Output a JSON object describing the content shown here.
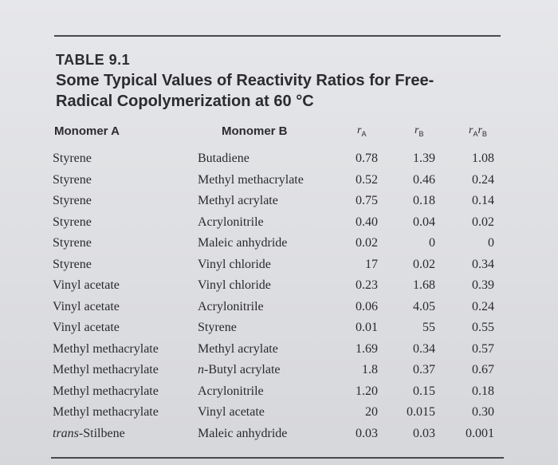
{
  "table": {
    "label": "TABLE 9.1",
    "title_line1": "Some Typical Values of Reactivity Ratios for Free-",
    "title_line2": "Radical Copolymerization at 60 °C",
    "headers": {
      "monomer_a": "Monomer A",
      "monomer_b": "Monomer B",
      "ra_symbol": "r",
      "ra_sub": "A",
      "rb_symbol": "r",
      "rb_sub": "B",
      "rab_symbol_1": "r",
      "rab_sub_1": "A",
      "rab_symbol_2": "r",
      "rab_sub_2": "B"
    },
    "rows": [
      {
        "a_prefix": "",
        "a": "Styrene",
        "b_prefix": "",
        "b": "Butadiene",
        "ra": "0.78",
        "rb": "1.39",
        "rab": "1.08"
      },
      {
        "a_prefix": "",
        "a": "Styrene",
        "b_prefix": "",
        "b": "Methyl methacrylate",
        "ra": "0.52",
        "rb": "0.46",
        "rab": "0.24"
      },
      {
        "a_prefix": "",
        "a": "Styrene",
        "b_prefix": "",
        "b": "Methyl acrylate",
        "ra": "0.75",
        "rb": "0.18",
        "rab": "0.14"
      },
      {
        "a_prefix": "",
        "a": "Styrene",
        "b_prefix": "",
        "b": "Acrylonitrile",
        "ra": "0.40",
        "rb": "0.04",
        "rab": "0.02"
      },
      {
        "a_prefix": "",
        "a": "Styrene",
        "b_prefix": "",
        "b": "Maleic anhydride",
        "ra": "0.02",
        "rb": "0",
        "rab": "0"
      },
      {
        "a_prefix": "",
        "a": "Styrene",
        "b_prefix": "",
        "b": "Vinyl chloride",
        "ra": "17",
        "rb": "0.02",
        "rab": "0.34"
      },
      {
        "a_prefix": "",
        "a": "Vinyl acetate",
        "b_prefix": "",
        "b": "Vinyl chloride",
        "ra": "0.23",
        "rb": "1.68",
        "rab": "0.39"
      },
      {
        "a_prefix": "",
        "a": "Vinyl acetate",
        "b_prefix": "",
        "b": "Acrylonitrile",
        "ra": "0.06",
        "rb": "4.05",
        "rab": "0.24"
      },
      {
        "a_prefix": "",
        "a": "Vinyl acetate",
        "b_prefix": "",
        "b": "Styrene",
        "ra": "0.01",
        "rb": "55",
        "rab": "0.55"
      },
      {
        "a_prefix": "",
        "a": "Methyl methacrylate",
        "b_prefix": "",
        "b": "Methyl acrylate",
        "ra": "1.69",
        "rb": "0.34",
        "rab": "0.57"
      },
      {
        "a_prefix": "",
        "a": "Methyl methacrylate",
        "b_prefix": "n-",
        "b": "Butyl acrylate",
        "ra": "1.8",
        "rb": "0.37",
        "rab": "0.67"
      },
      {
        "a_prefix": "",
        "a": "Methyl methacrylate",
        "b_prefix": "",
        "b": "Acrylonitrile",
        "ra": "1.20",
        "rb": "0.15",
        "rab": "0.18"
      },
      {
        "a_prefix": "",
        "a": "Methyl methacrylate",
        "b_prefix": "",
        "b": "Vinyl acetate",
        "ra": "20",
        "rb": "0.015",
        "rab": "0.30"
      },
      {
        "a_prefix": "trans-",
        "a": "Stilbene",
        "b_prefix": "",
        "b": "Maleic anhydride",
        "ra": "0.03",
        "rb": "0.03",
        "rab": "0.001"
      }
    ]
  }
}
